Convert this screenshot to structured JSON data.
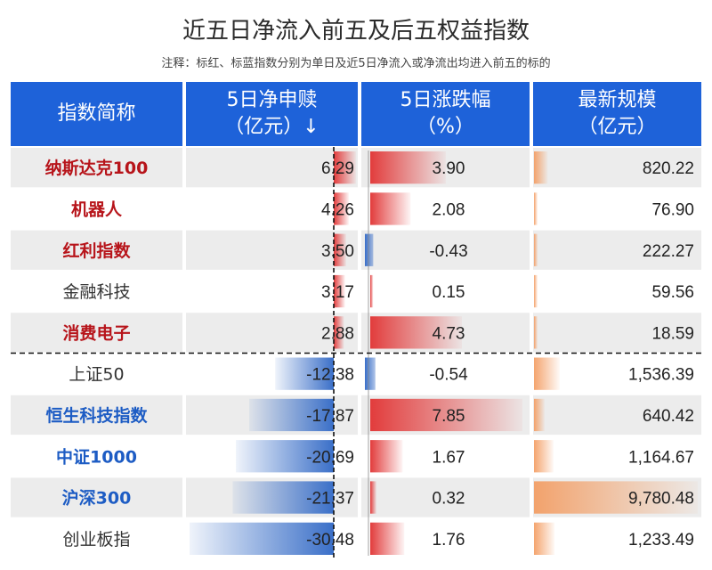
{
  "title": "近五日净流入前五及后五权益指数",
  "note": "注释：标红、标蓝指数分别为单日及近5日净流入或净流出均进入前五的标的",
  "headers": {
    "name": "指数简称",
    "flow_l1": "5日净申赎",
    "flow_l2": "（亿元）↓",
    "chg_l1": "5日涨跌幅",
    "chg_l2": "（%）",
    "scale_l1": "最新规模",
    "scale_l2": "（亿元）"
  },
  "colors": {
    "header_bg": "#1e62d9",
    "row_alt_bg": "#ececec",
    "highlight_red": "#b7141a",
    "highlight_blue": "#1d5cc4",
    "plain_text": "#333333",
    "pos_bar": "#e34a4a",
    "neg_bar": "#3f74c9",
    "scale_bar": "#f4a36c"
  },
  "chart_data": {
    "type": "table",
    "columns": [
      "指数简称",
      "5日净申赎（亿元）",
      "5日涨跌幅（%）",
      "最新规模（亿元）"
    ],
    "rows": [
      {
        "name": "纳斯达克100",
        "highlight": "red",
        "flow": 6.29,
        "flow_text": "6.29",
        "chg": 3.9,
        "chg_text": "3.90",
        "scale": 820.22,
        "scale_text": "820.22"
      },
      {
        "name": "机器人",
        "highlight": "red",
        "flow": 4.26,
        "flow_text": "4.26",
        "chg": 2.08,
        "chg_text": "2.08",
        "scale": 76.9,
        "scale_text": "76.90"
      },
      {
        "name": "红利指数",
        "highlight": "red",
        "flow": 3.5,
        "flow_text": "3.50",
        "chg": -0.43,
        "chg_text": "-0.43",
        "scale": 222.27,
        "scale_text": "222.27"
      },
      {
        "name": "金融科技",
        "highlight": "none",
        "flow": 3.17,
        "flow_text": "3.17",
        "chg": 0.15,
        "chg_text": "0.15",
        "scale": 59.56,
        "scale_text": "59.56"
      },
      {
        "name": "消费电子",
        "highlight": "red",
        "flow": 2.88,
        "flow_text": "2.88",
        "chg": 4.73,
        "chg_text": "4.73",
        "scale": 18.59,
        "scale_text": "18.59"
      },
      {
        "name": "上证50",
        "highlight": "none",
        "flow": -12.38,
        "flow_text": "-12.38",
        "chg": -0.54,
        "chg_text": "-0.54",
        "scale": 1536.39,
        "scale_text": "1,536.39"
      },
      {
        "name": "恒生科技指数",
        "highlight": "blue",
        "flow": -17.87,
        "flow_text": "-17.87",
        "chg": 7.85,
        "chg_text": "7.85",
        "scale": 640.42,
        "scale_text": "640.42"
      },
      {
        "name": "中证1000",
        "highlight": "blue",
        "flow": -20.69,
        "flow_text": "-20.69",
        "chg": 1.67,
        "chg_text": "1.67",
        "scale": 1164.67,
        "scale_text": "1,164.67"
      },
      {
        "name": "沪深300",
        "highlight": "blue",
        "flow": -21.37,
        "flow_text": "-21.37",
        "chg": 0.32,
        "chg_text": "0.32",
        "scale": 9780.48,
        "scale_text": "9,780.48"
      },
      {
        "name": "创业板指",
        "highlight": "none",
        "flow": -30.48,
        "flow_text": "-30.48",
        "chg": 1.76,
        "chg_text": "1.76",
        "scale": 1233.49,
        "scale_text": "1,233.49"
      }
    ]
  }
}
